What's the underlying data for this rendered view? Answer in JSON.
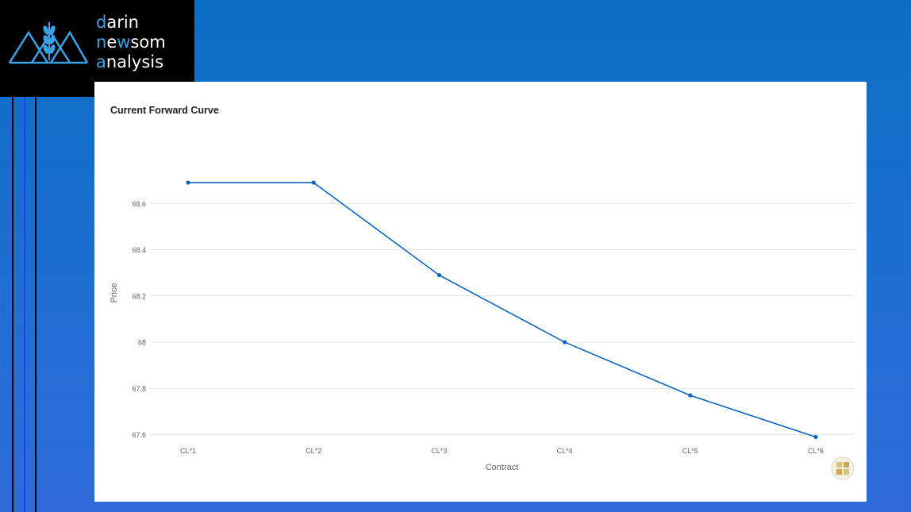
{
  "brand": {
    "line1_initial": "d",
    "line1_rest": "arin",
    "line2_initial": "n",
    "line2_mid": "e",
    "line2_accent": "w",
    "line2_rest": "som",
    "line3_initial": "a",
    "line3_rest": "nalysis"
  },
  "colors": {
    "line": "#0a66c2",
    "grid": "#e6e6e6",
    "tick_text": "#666666",
    "accent": "#3aa3e8"
  },
  "icons": {
    "logo": "wheat-mountains-logo",
    "badge": "chart-badge-icon"
  },
  "chart_data": {
    "type": "line",
    "title": "Current Forward Curve",
    "xlabel": "Contract",
    "ylabel": "Price",
    "categories": [
      "CL*1",
      "CL*2",
      "CL*3",
      "CL*4",
      "CL*5",
      "CL*6"
    ],
    "series": [
      {
        "values": [
          68.69,
          68.69,
          68.29,
          68.0,
          67.77,
          67.59
        ]
      }
    ],
    "yticks": [
      67.6,
      67.8,
      68,
      68.2,
      68.4,
      68.6
    ],
    "ytick_labels": [
      "67.6",
      "67.8",
      "68",
      "68.2",
      "68.4",
      "68.6"
    ],
    "ylim": [
      67.53,
      68.8
    ],
    "grid": true,
    "legend": "none"
  }
}
